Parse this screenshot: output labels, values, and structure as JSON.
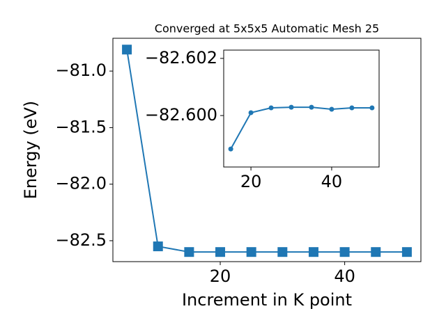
{
  "chart_data": [
    {
      "type": "line",
      "title": "Converged at 5x5x5 Automatic Mesh 25",
      "xlabel": "Increment in K point",
      "ylabel": "Energy (eV)",
      "x": [
        5,
        10,
        15,
        20,
        25,
        30,
        35,
        40,
        45,
        50
      ],
      "series": [
        {
          "color": "#1f77b4",
          "marker": "square",
          "values": [
            -80.81,
            -82.55,
            -82.6,
            -82.6,
            -82.6,
            -82.6,
            -82.6,
            -82.6,
            -82.6,
            -82.6
          ]
        }
      ],
      "xlim": [
        2.75,
        52.25
      ],
      "xticks": [
        20,
        40
      ],
      "ylim": [
        -82.685,
        -80.71
      ],
      "yticks": [
        {
          "value": -81.0,
          "label": "−81.0"
        },
        {
          "value": -81.5,
          "label": "−81.5"
        },
        {
          "value": -82.0,
          "label": "−82.0"
        },
        {
          "value": -82.5,
          "label": "−82.5"
        }
      ]
    },
    {
      "type": "line",
      "x": [
        15,
        20,
        25,
        30,
        35,
        40,
        45,
        50
      ],
      "series": [
        {
          "color": "#1f77b4",
          "marker": "circle",
          "values": [
            -82.59883,
            -82.6001,
            -82.60027,
            -82.60029,
            -82.60029,
            -82.60022,
            -82.60027,
            -82.60027
          ]
        }
      ],
      "xlim": [
        13.25,
        51.75
      ],
      "xticks": [
        20,
        40
      ],
      "ylim": [
        -82.5982,
        -82.60229
      ],
      "yticks": [
        {
          "value": -82.602,
          "label": "−82.602"
        },
        {
          "value": -82.6,
          "label": "−82.600"
        }
      ]
    }
  ]
}
